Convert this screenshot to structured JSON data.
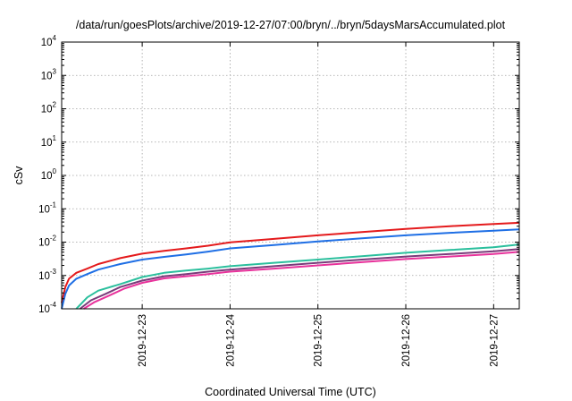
{
  "chart_data": {
    "type": "line",
    "title": "/data/run/goesPlots/archive/2019-12-27/07:00/bryn/../bryn/5daysMarsAccumulated.plot",
    "xlabel": "Coordinated Universal Time (UTC)",
    "ylabel": "cSv",
    "y_scale": "log",
    "ylim": [
      0.0001,
      10000
    ],
    "yticks": [
      {
        "base": "10",
        "exp": "-4"
      },
      {
        "base": "10",
        "exp": "-3"
      },
      {
        "base": "10",
        "exp": "-2"
      },
      {
        "base": "10",
        "exp": "-1"
      },
      {
        "base": "10",
        "exp": "0"
      },
      {
        "base": "10",
        "exp": "1"
      },
      {
        "base": "10",
        "exp": "2"
      },
      {
        "base": "10",
        "exp": "3"
      },
      {
        "base": "10",
        "exp": "4"
      }
    ],
    "xlim": [
      "2019-12-22 02:00",
      "2019-12-27 07:00"
    ],
    "xticks": [
      "2019-12-23",
      "2019-12-24",
      "2019-12-25",
      "2019-12-26",
      "2019-12-27"
    ],
    "grid": true,
    "legend": "none",
    "series": [
      {
        "color": "#e41a1c",
        "points": [
          [
            "2019-12-22 02:00",
            0.00015
          ],
          [
            "2019-12-22 03:00",
            0.00045
          ],
          [
            "2019-12-22 04:00",
            0.0008
          ],
          [
            "2019-12-22 06:00",
            0.0012
          ],
          [
            "2019-12-22 09:00",
            0.0016
          ],
          [
            "2019-12-22 12:00",
            0.0022
          ],
          [
            "2019-12-22 18:00",
            0.0033
          ],
          [
            "2019-12-23 00:00",
            0.0045
          ],
          [
            "2019-12-23 06:00",
            0.0055
          ],
          [
            "2019-12-23 12:00",
            0.0065
          ],
          [
            "2019-12-23 18:00",
            0.0078
          ],
          [
            "2019-12-24 00:00",
            0.0098
          ],
          [
            "2019-12-24 12:00",
            0.0125
          ],
          [
            "2019-12-25 00:00",
            0.016
          ],
          [
            "2019-12-25 12:00",
            0.02
          ],
          [
            "2019-12-26 00:00",
            0.025
          ],
          [
            "2019-12-26 12:00",
            0.03
          ],
          [
            "2019-12-27 00:00",
            0.035
          ],
          [
            "2019-12-27 07:00",
            0.038
          ]
        ]
      },
      {
        "color": "#1f6fe5",
        "points": [
          [
            "2019-12-22 02:00",
            0.0001
          ],
          [
            "2019-12-22 03:00",
            0.00028
          ],
          [
            "2019-12-22 04:00",
            0.0005
          ],
          [
            "2019-12-22 06:00",
            0.0008
          ],
          [
            "2019-12-22 09:00",
            0.0011
          ],
          [
            "2019-12-22 12:00",
            0.0015
          ],
          [
            "2019-12-22 18:00",
            0.0022
          ],
          [
            "2019-12-23 00:00",
            0.003
          ],
          [
            "2019-12-23 06:00",
            0.0036
          ],
          [
            "2019-12-23 12:00",
            0.0043
          ],
          [
            "2019-12-23 18:00",
            0.0052
          ],
          [
            "2019-12-24 00:00",
            0.0065
          ],
          [
            "2019-12-24 12:00",
            0.0082
          ],
          [
            "2019-12-25 00:00",
            0.0105
          ],
          [
            "2019-12-25 12:00",
            0.013
          ],
          [
            "2019-12-26 00:00",
            0.016
          ],
          [
            "2019-12-26 12:00",
            0.019
          ],
          [
            "2019-12-27 00:00",
            0.022
          ],
          [
            "2019-12-27 07:00",
            0.024
          ]
        ]
      },
      {
        "color": "#2bbf9d",
        "points": [
          [
            "2019-12-22 06:00",
            0.0001
          ],
          [
            "2019-12-22 09:00",
            0.00022
          ],
          [
            "2019-12-22 12:00",
            0.00035
          ],
          [
            "2019-12-22 18:00",
            0.00055
          ],
          [
            "2019-12-23 00:00",
            0.0009
          ],
          [
            "2019-12-23 06:00",
            0.0012
          ],
          [
            "2019-12-23 12:00",
            0.0014
          ],
          [
            "2019-12-23 18:00",
            0.0016
          ],
          [
            "2019-12-24 00:00",
            0.0019
          ],
          [
            "2019-12-24 12:00",
            0.0024
          ],
          [
            "2019-12-25 00:00",
            0.003
          ],
          [
            "2019-12-25 12:00",
            0.0038
          ],
          [
            "2019-12-26 00:00",
            0.0048
          ],
          [
            "2019-12-26 12:00",
            0.0058
          ],
          [
            "2019-12-27 00:00",
            0.007
          ],
          [
            "2019-12-27 07:00",
            0.0085
          ]
        ]
      },
      {
        "color": "#7a3b7a",
        "points": [
          [
            "2019-12-22 07:00",
            0.0001
          ],
          [
            "2019-12-22 10:00",
            0.00018
          ],
          [
            "2019-12-22 14:00",
            0.00028
          ],
          [
            "2019-12-22 18:00",
            0.00045
          ],
          [
            "2019-12-23 00:00",
            0.0007
          ],
          [
            "2019-12-23 06:00",
            0.00095
          ],
          [
            "2019-12-23 12:00",
            0.0011
          ],
          [
            "2019-12-23 18:00",
            0.0013
          ],
          [
            "2019-12-24 00:00",
            0.0015
          ],
          [
            "2019-12-24 12:00",
            0.0019
          ],
          [
            "2019-12-25 00:00",
            0.0024
          ],
          [
            "2019-12-25 12:00",
            0.003
          ],
          [
            "2019-12-26 00:00",
            0.0037
          ],
          [
            "2019-12-26 12:00",
            0.0044
          ],
          [
            "2019-12-27 00:00",
            0.0053
          ],
          [
            "2019-12-27 07:00",
            0.0062
          ]
        ]
      },
      {
        "color": "#e8329b",
        "points": [
          [
            "2019-12-22 08:00",
            0.0001
          ],
          [
            "2019-12-22 11:00",
            0.00016
          ],
          [
            "2019-12-22 15:00",
            0.00025
          ],
          [
            "2019-12-22 19:00",
            0.0004
          ],
          [
            "2019-12-23 00:00",
            0.0006
          ],
          [
            "2019-12-23 06:00",
            0.00082
          ],
          [
            "2019-12-23 12:00",
            0.00095
          ],
          [
            "2019-12-23 18:00",
            0.0011
          ],
          [
            "2019-12-24 00:00",
            0.0013
          ],
          [
            "2019-12-24 12:00",
            0.0016
          ],
          [
            "2019-12-25 00:00",
            0.002
          ],
          [
            "2019-12-25 12:00",
            0.0025
          ],
          [
            "2019-12-26 00:00",
            0.0031
          ],
          [
            "2019-12-26 12:00",
            0.0037
          ],
          [
            "2019-12-27 00:00",
            0.0044
          ],
          [
            "2019-12-27 07:00",
            0.0051
          ]
        ]
      }
    ]
  }
}
